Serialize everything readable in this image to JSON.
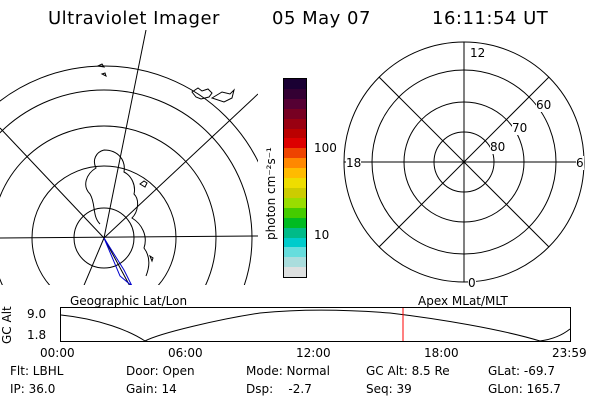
{
  "header": {
    "instrument": "Ultraviolet Imager",
    "date": "05 May 07",
    "time": "16:11:54 UT"
  },
  "left_panel": {
    "caption": "Geographic Lat/Lon"
  },
  "right_panel": {
    "caption": "Apex MLat/MLT",
    "mlt_labels": {
      "top": "12",
      "bottom": "0",
      "left": "18",
      "right": "6"
    },
    "lat_labels": [
      "60",
      "70",
      "80"
    ]
  },
  "colorbar": {
    "unit_label": "photon cm⁻²s⁻¹",
    "tick_labels": [
      "100",
      "10"
    ],
    "colors": [
      "#1a0033",
      "#330033",
      "#550033",
      "#770022",
      "#990011",
      "#bb0000",
      "#dd0000",
      "#ee4400",
      "#ff8800",
      "#ffbb00",
      "#eedd00",
      "#cccc00",
      "#99dd00",
      "#44cc00",
      "#00bb22",
      "#00bb88",
      "#00cccc",
      "#66dddd",
      "#aadddd",
      "#dde0e0"
    ]
  },
  "gc_alt_plot": {
    "ylabel": "GC Alt",
    "yticks": [
      "9.0",
      "1.8"
    ],
    "xticks": [
      "00:00",
      "06:00",
      "12:00",
      "18:00",
      "23:59"
    ],
    "marker_color": "#ff0000"
  },
  "info": {
    "flt": "Flt: LBHL",
    "ip": "IP: 36.0",
    "door": "Door: Open",
    "gain": "Gain: 14",
    "mode": "Mode: Normal",
    "dsp": "Dsp:    -2.7",
    "gc_alt": "GC Alt: 8.5 Re",
    "seq": "Seq: 39",
    "glat": "GLat: -69.7",
    "glon": "GLon: 165.7"
  }
}
